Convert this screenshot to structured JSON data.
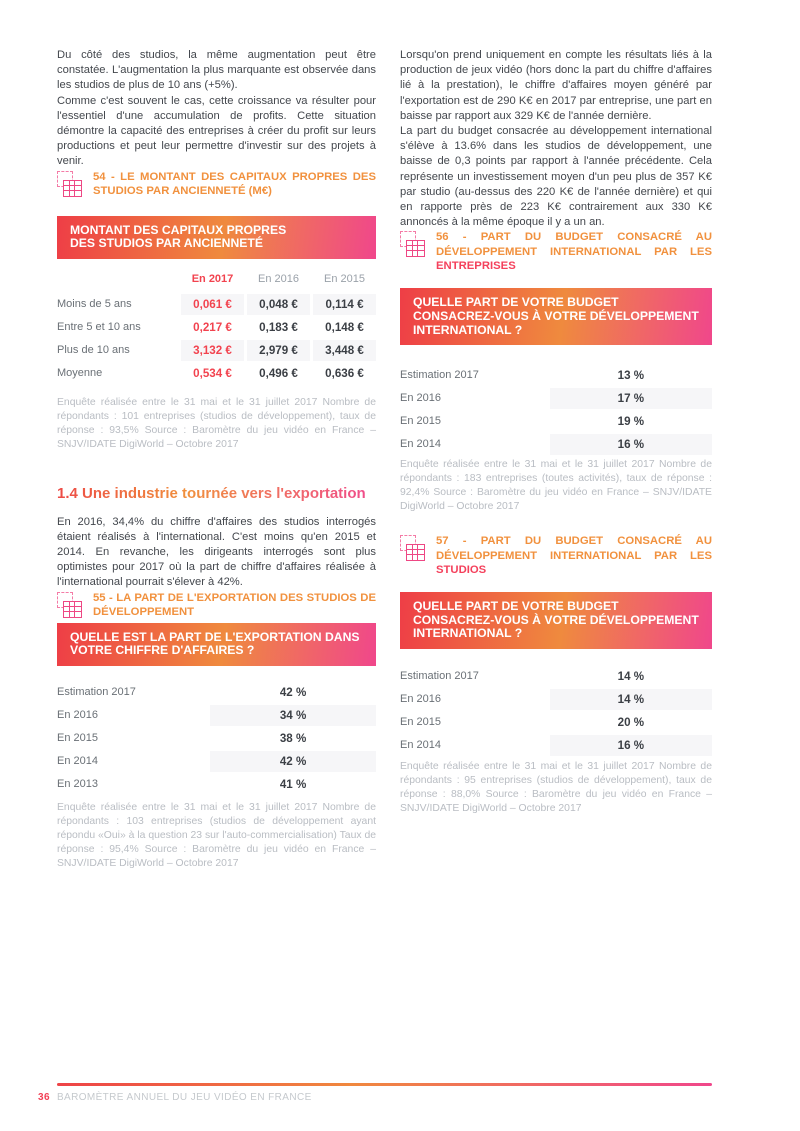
{
  "colors": {
    "accent_orange": "#f1913e",
    "accent_pink": "#f0478b",
    "accent_red": "#ee3e46",
    "value_red": "#f2434f",
    "text_dark": "#3b3f45",
    "label_gray": "#6a7076",
    "footnote_gray": "#b9bdc3",
    "shade_gray": "#f6f6f8"
  },
  "left": {
    "para1": "Du côté des studios, la même augmentation peut être constatée. L'augmentation la plus marquante est observée dans les studios de plus de 10 ans (+5%).",
    "para2": "Comme c'est souvent le cas, cette croissance va résulter pour l'essentiel d'une accumulation de profits. Cette situation démontre la capacité des entreprises à créer du profit sur leurs productions et peut leur permettre d'investir sur des projets à venir.",
    "caption54": "54 - LE MONTANT DES CAPITAUX PROPRES DES STUDIOS PAR ANCIENNETÉ (M€)",
    "table54": {
      "title": "MONTANT DES CAPITAUX PROPRES DES STUDIOS PAR ANCIENNETÉ",
      "col_headers": [
        "En 2017",
        "En 2016",
        "En 2015"
      ],
      "rows": [
        {
          "label": "Moins de 5 ans",
          "v2017": "0,061 €",
          "v2016": "0,048 €",
          "v2015": "0,114 €"
        },
        {
          "label": "Entre 5 et 10 ans",
          "v2017": "0,217 €",
          "v2016": "0,183 €",
          "v2015": "0,148 €"
        },
        {
          "label": "Plus de 10 ans",
          "v2017": "3,132 €",
          "v2016": "2,979 €",
          "v2015": "3,448 €"
        },
        {
          "label": "Moyenne",
          "v2017": "0,534 €",
          "v2016": "0,496 €",
          "v2015": "0,636 €"
        }
      ],
      "footnote": "Enquête réalisée entre le 31 mai et le 31 juillet 2017 Nombre de répondants : 101 entreprises (studios de développement), taux de réponse : 93,5% Source : Baromètre du jeu vidéo en France – SNJV/IDATE DigiWorld – Octobre 2017"
    },
    "section_title": "1.4 Une industrie tournée vers l'exportation",
    "para3": "En 2016, 34,4% du chiffre d'affaires des studios interrogés étaient réalisés à l'international. C'est moins qu'en 2015 et 2014. En revanche, les dirigeants interrogés sont plus optimistes pour 2017 où la part de chiffre d'affaires réalisée à l'international pourrait s'élever à 42%.",
    "caption55": "55 - LA PART DE L'EXPORTATION DES STUDIOS DE DÉVELOPPEMENT",
    "table55": {
      "question": "QUELLE EST LA PART DE L'EXPORTATION DANS VOTRE CHIFFRE D'AFFAIRES ?",
      "rows": [
        {
          "label": "Estimation 2017",
          "value": "42 %"
        },
        {
          "label": "En 2016",
          "value": "34 %"
        },
        {
          "label": "En 2015",
          "value": "38 %"
        },
        {
          "label": "En 2014",
          "value": "42 %"
        },
        {
          "label": "En 2013",
          "value": "41 %"
        }
      ],
      "footnote": "Enquête réalisée entre le 31 mai et le 31 juillet 2017 Nombre de répondants : 103 entreprises (studios de développement ayant répondu «Oui» à la question 23 sur l'auto-commercialisation) Taux de réponse : 95,4% Source : Baromètre du jeu vidéo en France – SNJV/IDATE DigiWorld – Octobre 2017"
    }
  },
  "right": {
    "para1": "Lorsqu'on prend uniquement en compte les résultats liés à la production de jeux vidéo (hors donc la part du chiffre d'affaires lié à la prestation), le chiffre d'affaires moyen généré par l'exportation est de 290 K€ en 2017 par entreprise, une part en baisse par rapport aux 329 K€ de l'année dernière.",
    "para2": "La part du budget consacrée au développement international s'élève à 13.6% dans les studios de développement, une baisse de 0,3 points par rapport à l'année précédente. Cela représente un investissement moyen d'un peu plus de 357 K€ par studio (au-dessus des 220 K€ de l'année dernière) et qui en rapporte près de 223 K€ contrairement aux 330 K€ annoncés à la même époque il y a un an.",
    "caption56": {
      "main": "56 - PART DU BUDGET CONSACRÉ AU DÉVELOPPEMENT INTERNATIONAL PAR LES ",
      "highlight": "ENTREPRISES"
    },
    "table56": {
      "question": "QUELLE PART DE VOTRE BUDGET CONSACREZ-VOUS À VOTRE DÉVELOPPEMENT INTERNATIONAL ?",
      "rows": [
        {
          "label": "Estimation 2017",
          "value": "13 %"
        },
        {
          "label": "En 2016",
          "value": "17 %"
        },
        {
          "label": "En 2015",
          "value": "19 %"
        },
        {
          "label": "En 2014",
          "value": "16 %"
        }
      ],
      "footnote": "Enquête réalisée entre le 31 mai et le 31 juillet 2017 Nombre de répondants : 183 entreprises (toutes activités), taux de réponse : 92,4% Source : Baromètre du jeu vidéo en France – SNJV/IDATE DigiWorld – Octobre 2017"
    },
    "caption57": {
      "main": "57 - PART DU BUDGET CONSACRÉ AU DÉVELOPPEMENT INTERNATIONAL PAR LES ",
      "highlight": "STUDIOS"
    },
    "table57": {
      "question": "QUELLE PART DE VOTRE BUDGET CONSACREZ-VOUS À VOTRE DÉVELOPPEMENT INTERNATIONAL ?",
      "rows": [
        {
          "label": "Estimation 2017",
          "value": "14 %"
        },
        {
          "label": "En 2016",
          "value": "14 %"
        },
        {
          "label": "En 2015",
          "value": "20 %"
        },
        {
          "label": "En 2014",
          "value": "16 %"
        }
      ],
      "footnote": "Enquête réalisée entre le 31 mai et le 31 juillet 2017 Nombre de répondants : 95 entreprises (studios de développement), taux de réponse : 88,0% Source : Baromètre du jeu vidéo en France – SNJV/IDATE DigiWorld – Octobre 2017"
    }
  },
  "footer": {
    "page_number": "36",
    "text": "BAROMÈTRE ANNUEL DU JEU VIDÉO EN FRANCE"
  }
}
